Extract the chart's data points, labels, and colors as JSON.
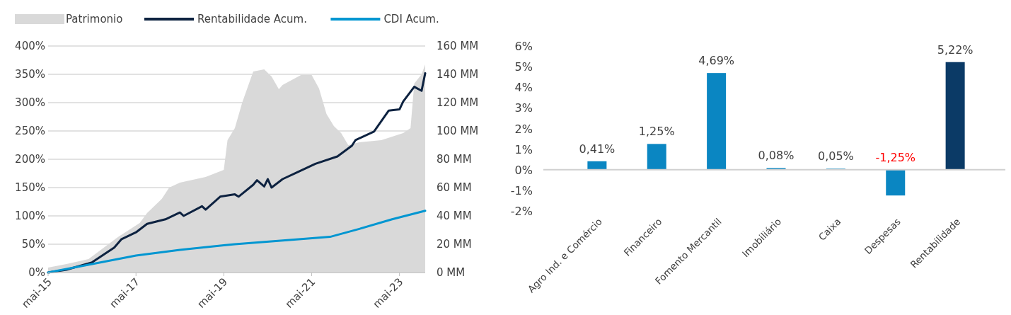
{
  "chart_data": [
    {
      "type": "line",
      "xlim": [
        "2015-05",
        "2023-12"
      ],
      "xticks": [
        {
          "value": "2015-05",
          "label": "mai-15"
        },
        {
          "value": "2017-05",
          "label": "mai-17"
        },
        {
          "value": "2019-05",
          "label": "mai-19"
        },
        {
          "value": "2021-05",
          "label": "mai-21"
        },
        {
          "value": "2023-05",
          "label": "mai-23"
        }
      ],
      "ylim": [
        0,
        400
      ],
      "yticks": [
        {
          "value": 0,
          "label": "0%"
        },
        {
          "value": 50,
          "label": "50%"
        },
        {
          "value": 100,
          "label": "100%"
        },
        {
          "value": 150,
          "label": "150%"
        },
        {
          "value": 200,
          "label": "200%"
        },
        {
          "value": 250,
          "label": "250%"
        },
        {
          "value": 300,
          "label": "300%"
        },
        {
          "value": 350,
          "label": "350%"
        },
        {
          "value": 400,
          "label": "400%"
        }
      ],
      "y2lim": [
        0,
        160
      ],
      "y2ticks": [
        {
          "value": 0,
          "label": "0 MM"
        },
        {
          "value": 20,
          "label": "20 MM"
        },
        {
          "value": 40,
          "label": "40 MM"
        },
        {
          "value": 60,
          "label": "60 MM"
        },
        {
          "value": 80,
          "label": "80 MM"
        },
        {
          "value": 100,
          "label": "100 MM"
        },
        {
          "value": 120,
          "label": "120 MM"
        },
        {
          "value": 140,
          "label": "140 MM"
        },
        {
          "value": 160,
          "label": "160 MM"
        }
      ],
      "grid": "y",
      "legend": "top left",
      "marker": "none",
      "line_style": "solid",
      "series": [
        {
          "name": "Patrimonio",
          "type": "area",
          "axis": "y2",
          "color": "#d9d9d9",
          "x": [
            "2015-05",
            "2015-10",
            "2016-04",
            "2016-12",
            "2017-06",
            "2017-08",
            "2017-12",
            "2018-02",
            "2018-05",
            "2018-12",
            "2019-05",
            "2019-06",
            "2019-08",
            "2019-10",
            "2020-01",
            "2020-04",
            "2020-06",
            "2020-08",
            "2020-09",
            "2021-02",
            "2021-05",
            "2021-07",
            "2021-09",
            "2021-11",
            "2022-01",
            "2022-03",
            "2022-06",
            "2022-12",
            "2023-06",
            "2023-08",
            "2023-09",
            "2023-11",
            "2023-12"
          ],
          "values": [
            3.5,
            6,
            9.5,
            25,
            35,
            42,
            52,
            60,
            63.5,
            67.5,
            72.5,
            93.5,
            102,
            120,
            142,
            143.5,
            138.5,
            129.5,
            132.5,
            139.5,
            139.5,
            130,
            112,
            103.5,
            98.5,
            90,
            92,
            93.5,
            98.5,
            102,
            133.5,
            140,
            147
          ]
        },
        {
          "name": "Rentabilidade Acum.",
          "type": "line",
          "color": "#0d2240",
          "x": [
            "2015-05",
            "2015-10",
            "2016-05",
            "2016-11",
            "2017-01",
            "2017-05",
            "2017-08",
            "2018-01",
            "2018-05",
            "2018-06",
            "2018-11",
            "2018-12",
            "2019-04",
            "2019-08",
            "2019-09",
            "2020-01",
            "2020-02",
            "2020-04",
            "2020-05",
            "2020-06",
            "2020-09",
            "2021-01",
            "2021-06",
            "2021-12",
            "2022-04",
            "2022-05",
            "2022-10",
            "2023-02",
            "2023-05",
            "2023-06",
            "2023-09",
            "2023-11",
            "2023-12"
          ],
          "values": [
            0,
            5,
            18,
            44,
            59,
            71,
            86,
            94,
            106,
            100,
            117,
            111,
            134,
            138,
            134,
            155,
            163,
            152,
            165,
            150,
            165,
            177,
            192,
            205,
            224,
            234,
            249,
            286,
            288,
            302,
            328,
            321,
            352
          ]
        },
        {
          "name": "CDI Acum.",
          "type": "line",
          "color": "#0096d1",
          "x": [
            "2015-05",
            "2016-05",
            "2017-05",
            "2018-05",
            "2019-05",
            "2019-08",
            "2021-02",
            "2021-10",
            "2022-06",
            "2023-03",
            "2023-12"
          ],
          "values": [
            0,
            15,
            30,
            40,
            48,
            50,
            59,
            63,
            77,
            94,
            109
          ]
        }
      ]
    },
    {
      "type": "bar",
      "categories": [
        "Agro Ind. e Comércio",
        "Financeiro",
        "Fomento Mercantil",
        "Imobiliário",
        "Caixa",
        "Despesas",
        "Rentabilidade"
      ],
      "values": [
        0.41,
        1.25,
        4.69,
        0.08,
        0.05,
        -1.25,
        5.22
      ],
      "colors": [
        "#0a86c2",
        "#0a86c2",
        "#0a86c2",
        "#0a86c2",
        "#0a86c2",
        "#0a86c2",
        "#0b3a66"
      ],
      "value_labels": [
        "0,41%",
        "1,25%",
        "4,69%",
        "0,08%",
        "0,05%",
        "-1,25%",
        "5,22%"
      ],
      "ylim": [
        -2,
        6
      ],
      "yticks": [
        {
          "value": -2,
          "label": "-2%"
        },
        {
          "value": -1,
          "label": "-1%"
        },
        {
          "value": 0,
          "label": "0%"
        },
        {
          "value": 1,
          "label": "1%"
        },
        {
          "value": 2,
          "label": "2%"
        },
        {
          "value": 3,
          "label": "3%"
        },
        {
          "value": 4,
          "label": "4%"
        },
        {
          "value": 5,
          "label": "5%"
        },
        {
          "value": 6,
          "label": "6%"
        }
      ],
      "legend": false
    }
  ]
}
